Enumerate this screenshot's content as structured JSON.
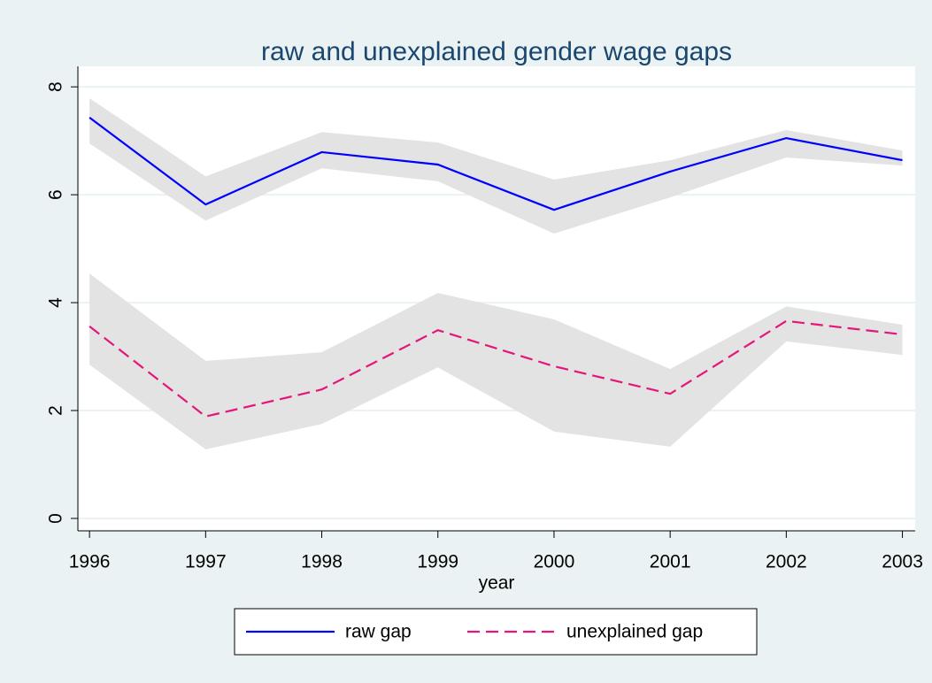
{
  "chart_data": {
    "type": "line",
    "title": "raw and unexplained gender wage gaps",
    "x_label": "year",
    "x": [
      1996,
      1997,
      1998,
      1999,
      2000,
      2001,
      2002,
      2003
    ],
    "series": [
      {
        "name": "raw gap",
        "color": "#0000ff",
        "dash": false,
        "values": [
          7.43,
          5.82,
          6.79,
          6.56,
          5.72,
          6.43,
          7.05,
          6.64
        ],
        "ci_upper": [
          7.79,
          6.34,
          7.16,
          6.97,
          6.28,
          6.64,
          7.2,
          6.82
        ],
        "ci_lower": [
          6.95,
          5.52,
          6.49,
          6.25,
          5.28,
          5.95,
          6.69,
          6.54
        ]
      },
      {
        "name": "unexplained gap",
        "color": "#e5167a",
        "dash": true,
        "values": [
          3.56,
          1.89,
          2.39,
          3.49,
          2.82,
          2.31,
          3.66,
          3.41
        ],
        "ci_upper": [
          4.54,
          2.92,
          3.08,
          4.18,
          3.69,
          2.77,
          3.93,
          3.59
        ],
        "ci_lower": [
          2.85,
          1.28,
          1.75,
          2.8,
          1.61,
          1.33,
          3.28,
          3.03
        ]
      }
    ],
    "band_color": "#e3e3e3",
    "xlim": [
      1995.9,
      2003.11
    ],
    "xticks": [
      1996,
      1997,
      1998,
      1999,
      2000,
      2001,
      2002,
      2003
    ],
    "ylim": [
      -0.23,
      8.38
    ],
    "yticks": [
      0,
      2,
      4,
      6,
      8
    ],
    "grid": true,
    "legend": "bottom"
  }
}
